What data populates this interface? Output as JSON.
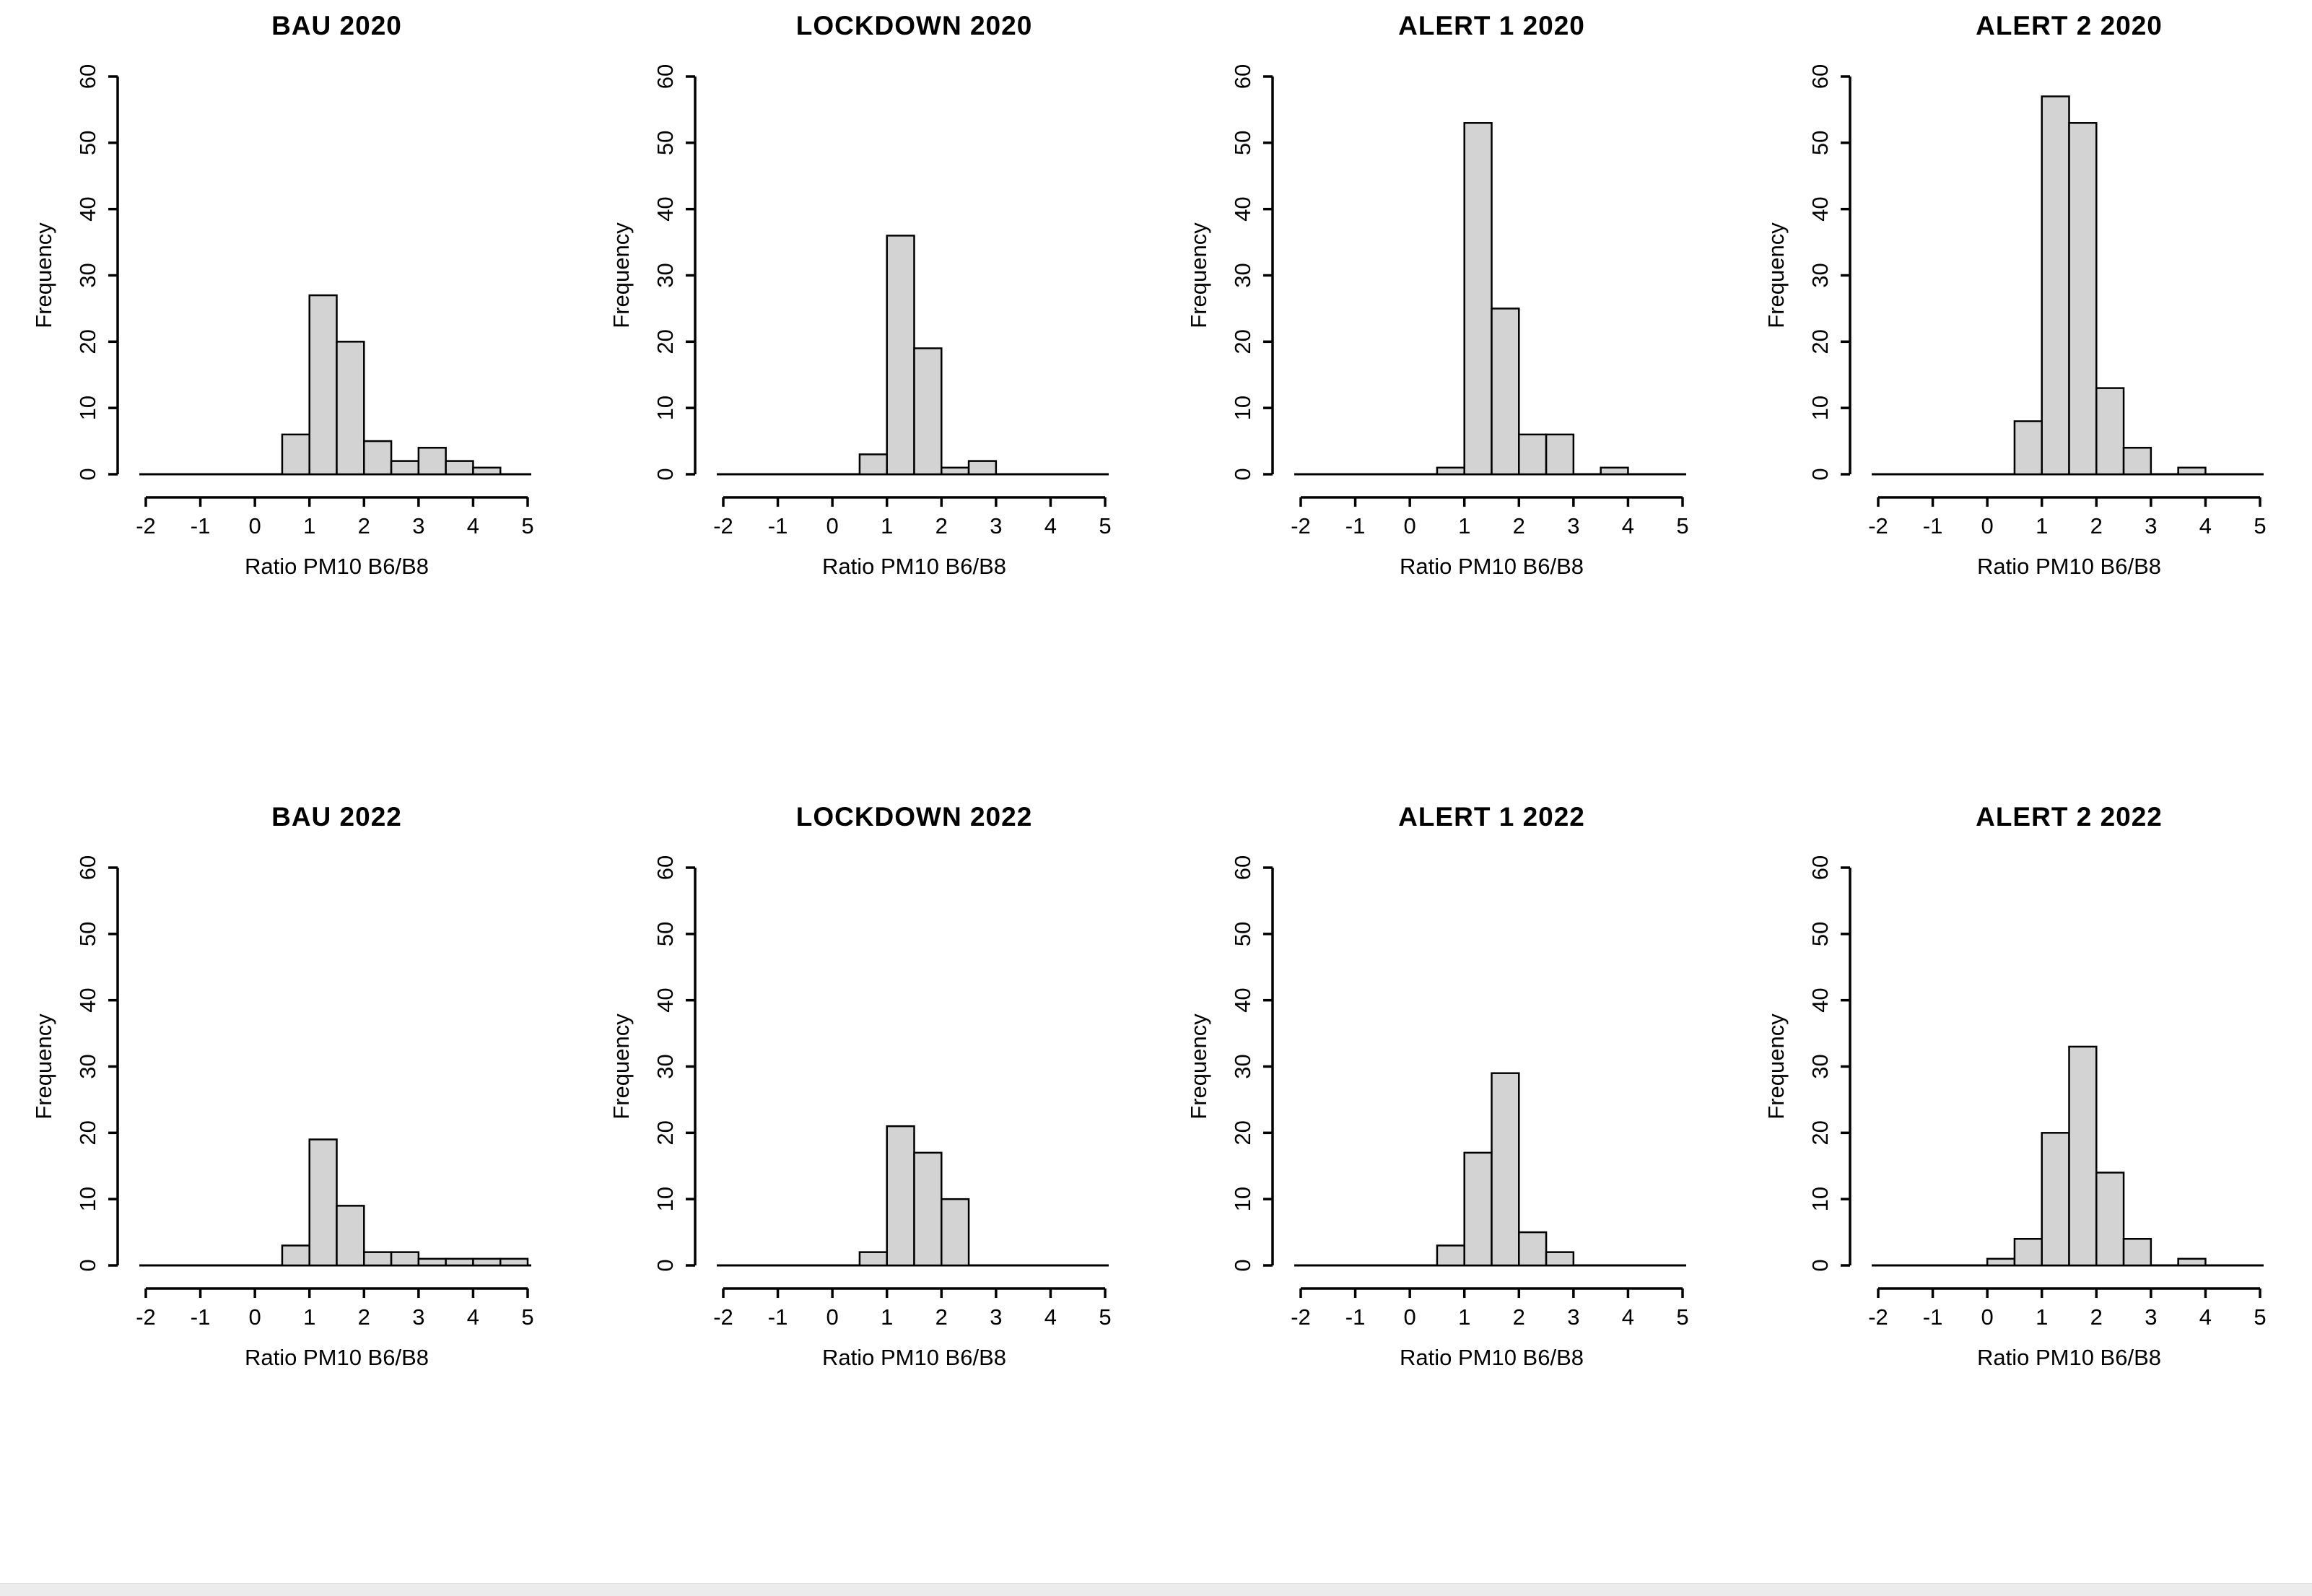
{
  "page": {
    "background": "#ffffff",
    "bottom_strip_color": "#ececec"
  },
  "style": {
    "bar_fill": "#d3d3d3",
    "bar_stroke": "#000000",
    "axis_color": "#000000"
  },
  "chart_data": [
    {
      "type": "bar",
      "title": "BAU 2020",
      "xlabel": "Ratio PM10  B6/B8",
      "ylabel": "Frequency",
      "xlim": [
        -2,
        5
      ],
      "ylim": [
        0,
        60
      ],
      "xticks": [
        -2,
        -1,
        0,
        1,
        2,
        3,
        4,
        5
      ],
      "yticks": [
        0,
        10,
        20,
        30,
        40,
        50,
        60
      ],
      "bin_width": 0.5,
      "bars": [
        {
          "x0": 0.5,
          "count": 6
        },
        {
          "x0": 1.0,
          "count": 27
        },
        {
          "x0": 1.5,
          "count": 20
        },
        {
          "x0": 2.0,
          "count": 5
        },
        {
          "x0": 2.5,
          "count": 2
        },
        {
          "x0": 3.0,
          "count": 4
        },
        {
          "x0": 3.5,
          "count": 2
        },
        {
          "x0": 4.0,
          "count": 1
        }
      ]
    },
    {
      "type": "bar",
      "title": "LOCKDOWN 2020",
      "xlabel": "Ratio PM10  B6/B8",
      "ylabel": "Frequency",
      "xlim": [
        -2,
        5
      ],
      "ylim": [
        0,
        60
      ],
      "xticks": [
        -2,
        -1,
        0,
        1,
        2,
        3,
        4,
        5
      ],
      "yticks": [
        0,
        10,
        20,
        30,
        40,
        50,
        60
      ],
      "bin_width": 0.5,
      "bars": [
        {
          "x0": 0.5,
          "count": 3
        },
        {
          "x0": 1.0,
          "count": 36
        },
        {
          "x0": 1.5,
          "count": 19
        },
        {
          "x0": 2.0,
          "count": 1
        },
        {
          "x0": 2.5,
          "count": 2
        }
      ]
    },
    {
      "type": "bar",
      "title": "ALERT 1 2020",
      "xlabel": "Ratio PM10  B6/B8",
      "ylabel": "Frequency",
      "xlim": [
        -2,
        5
      ],
      "ylim": [
        0,
        60
      ],
      "xticks": [
        -2,
        -1,
        0,
        1,
        2,
        3,
        4,
        5
      ],
      "yticks": [
        0,
        10,
        20,
        30,
        40,
        50,
        60
      ],
      "bin_width": 0.5,
      "bars": [
        {
          "x0": 0.5,
          "count": 1
        },
        {
          "x0": 1.0,
          "count": 53
        },
        {
          "x0": 1.5,
          "count": 25
        },
        {
          "x0": 2.0,
          "count": 6
        },
        {
          "x0": 2.5,
          "count": 6
        },
        {
          "x0": 3.5,
          "count": 1
        }
      ]
    },
    {
      "type": "bar",
      "title": "ALERT 2 2020",
      "xlabel": "Ratio PM10  B6/B8",
      "ylabel": "Frequency",
      "xlim": [
        -2,
        5
      ],
      "ylim": [
        0,
        60
      ],
      "xticks": [
        -2,
        -1,
        0,
        1,
        2,
        3,
        4,
        5
      ],
      "yticks": [
        0,
        10,
        20,
        30,
        40,
        50,
        60
      ],
      "bin_width": 0.5,
      "bars": [
        {
          "x0": 0.5,
          "count": 8
        },
        {
          "x0": 1.0,
          "count": 57
        },
        {
          "x0": 1.5,
          "count": 53
        },
        {
          "x0": 2.0,
          "count": 13
        },
        {
          "x0": 2.5,
          "count": 4
        },
        {
          "x0": 3.5,
          "count": 1
        }
      ]
    },
    {
      "type": "bar",
      "title": "BAU 2022",
      "xlabel": "Ratio PM10 B6/B8",
      "ylabel": "Frequency",
      "xlim": [
        -2,
        5
      ],
      "ylim": [
        0,
        60
      ],
      "xticks": [
        -2,
        -1,
        0,
        1,
        2,
        3,
        4,
        5
      ],
      "yticks": [
        0,
        10,
        20,
        30,
        40,
        50,
        60
      ],
      "bin_width": 0.5,
      "bars": [
        {
          "x0": 0.5,
          "count": 3
        },
        {
          "x0": 1.0,
          "count": 19
        },
        {
          "x0": 1.5,
          "count": 9
        },
        {
          "x0": 2.0,
          "count": 2
        },
        {
          "x0": 2.5,
          "count": 2
        },
        {
          "x0": 3.0,
          "count": 1
        },
        {
          "x0": 3.5,
          "count": 1
        },
        {
          "x0": 4.0,
          "count": 1
        },
        {
          "x0": 4.5,
          "count": 1
        }
      ]
    },
    {
      "type": "bar",
      "title": "LOCKDOWN 2022",
      "xlabel": "Ratio PM10 B6/B8",
      "ylabel": "Frequency",
      "xlim": [
        -2,
        5
      ],
      "ylim": [
        0,
        60
      ],
      "xticks": [
        -2,
        -1,
        0,
        1,
        2,
        3,
        4,
        5
      ],
      "yticks": [
        0,
        10,
        20,
        30,
        40,
        50,
        60
      ],
      "bin_width": 0.5,
      "bars": [
        {
          "x0": 0.5,
          "count": 2
        },
        {
          "x0": 1.0,
          "count": 21
        },
        {
          "x0": 1.5,
          "count": 17
        },
        {
          "x0": 2.0,
          "count": 10
        }
      ]
    },
    {
      "type": "bar",
      "title": "ALERT 1 2022",
      "xlabel": "Ratio PM10 B6/B8",
      "ylabel": "Frequency",
      "xlim": [
        -2,
        5
      ],
      "ylim": [
        0,
        60
      ],
      "xticks": [
        -2,
        -1,
        0,
        1,
        2,
        3,
        4,
        5
      ],
      "yticks": [
        0,
        10,
        20,
        30,
        40,
        50,
        60
      ],
      "bin_width": 0.5,
      "bars": [
        {
          "x0": 0.5,
          "count": 3
        },
        {
          "x0": 1.0,
          "count": 17
        },
        {
          "x0": 1.5,
          "count": 29
        },
        {
          "x0": 2.0,
          "count": 5
        },
        {
          "x0": 2.5,
          "count": 2
        }
      ]
    },
    {
      "type": "bar",
      "title": "ALERT 2 2022",
      "xlabel": "Ratio PM10 B6/B8",
      "ylabel": "Frequency",
      "xlim": [
        -2,
        5
      ],
      "ylim": [
        0,
        60
      ],
      "xticks": [
        -2,
        -1,
        0,
        1,
        2,
        3,
        4,
        5
      ],
      "yticks": [
        0,
        10,
        20,
        30,
        40,
        50,
        60
      ],
      "bin_width": 0.5,
      "bars": [
        {
          "x0": 0.0,
          "count": 1
        },
        {
          "x0": 0.5,
          "count": 4
        },
        {
          "x0": 1.0,
          "count": 20
        },
        {
          "x0": 1.5,
          "count": 33
        },
        {
          "x0": 2.0,
          "count": 14
        },
        {
          "x0": 2.5,
          "count": 4
        },
        {
          "x0": 3.5,
          "count": 1
        }
      ]
    }
  ]
}
